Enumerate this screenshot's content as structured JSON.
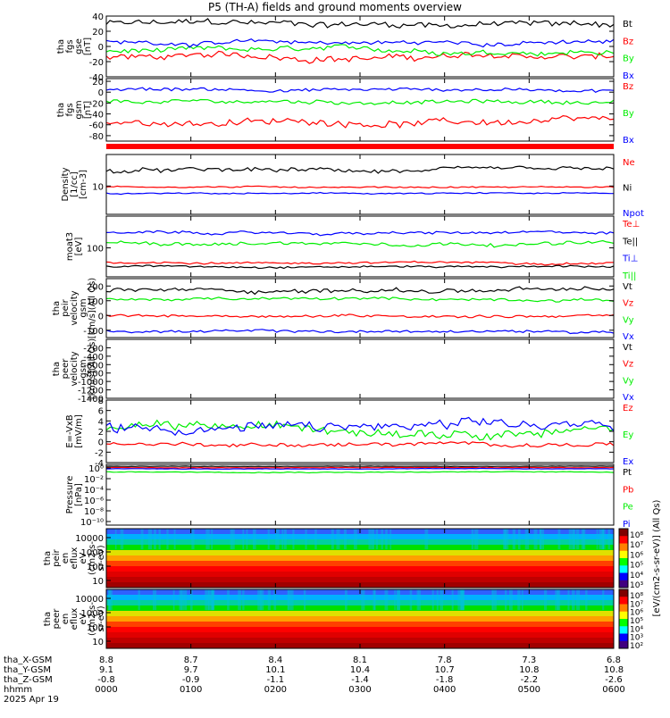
{
  "title": "P5 (TH-A) fields and ground moments overview",
  "chart_data": [
    {
      "type": "line",
      "ylabel": [
        "tha",
        "fgs",
        "gse",
        "[nT]"
      ],
      "ylim": [
        -40,
        40
      ],
      "yticks": [
        -40,
        -20,
        0,
        20,
        40
      ],
      "series": [
        {
          "name": "Bt",
          "color": "#000000",
          "base": 30,
          "amp": 7
        },
        {
          "name": "Bz",
          "color": "#ff0000",
          "base": -14,
          "amp": 7
        },
        {
          "name": "By",
          "color": "#00ee00",
          "base": -6,
          "amp": 6
        },
        {
          "name": "Bx",
          "color": "#0000ff",
          "base": 5,
          "amp": 5
        }
      ]
    },
    {
      "type": "line",
      "ylabel": [
        "tha",
        "fgs",
        "gsm",
        "[nT]"
      ],
      "ylim": [
        -90,
        25
      ],
      "yticks": [
        -80,
        -60,
        -40,
        -20,
        0,
        20
      ],
      "series": [
        {
          "name": "Bz",
          "color": "#ff0000",
          "base": -55,
          "amp": 10
        },
        {
          "name": "By",
          "color": "#00ee00",
          "base": -18,
          "amp": 6
        },
        {
          "name": "Bx",
          "color": "#0000ff",
          "base": 5,
          "amp": 5
        }
      ]
    },
    {
      "type": "line",
      "ylabel": [
        "Density",
        "[1/cc]",
        "[cm-3]"
      ],
      "ylim": [
        2,
        60
      ],
      "log": true,
      "yticks": [
        10
      ],
      "series": [
        {
          "name": "Ne",
          "color": "#ff0000",
          "base": 9.5,
          "amp": 0.6
        },
        {
          "name": "Ni",
          "color": "#000000",
          "base": 24,
          "amp": 5
        },
        {
          "name": "Npot",
          "color": "#0000ff",
          "base": 6.5,
          "amp": 0.4
        }
      ]
    },
    {
      "type": "line",
      "ylabel": [
        "moat3",
        "[eV]"
      ],
      "ylim": [
        15,
        800
      ],
      "log": true,
      "yticks": [
        100
      ],
      "series": [
        {
          "name": "Te⊥",
          "color": "#ff0000",
          "base": 38,
          "amp": 4
        },
        {
          "name": "Te||",
          "color": "#000000",
          "base": 30,
          "amp": 3
        },
        {
          "name": "Ti⊥",
          "color": "#0000ff",
          "base": 260,
          "amp": 40
        },
        {
          "name": "Ti||",
          "color": "#00ee00",
          "base": 140,
          "amp": 25
        }
      ]
    },
    {
      "type": "line",
      "ylabel": [
        "tha",
        "peir",
        "velocity",
        "gsm",
        "[km/s](All Qs)"
      ],
      "ylim": [
        -150,
        250
      ],
      "yticks": [
        -100,
        0,
        100,
        200
      ],
      "series": [
        {
          "name": "Vt",
          "color": "#000000",
          "base": 170,
          "amp": 25
        },
        {
          "name": "Vz",
          "color": "#ff0000",
          "base": 0,
          "amp": 15
        },
        {
          "name": "Vy",
          "color": "#00ee00",
          "base": 110,
          "amp": 15
        },
        {
          "name": "Vx",
          "color": "#0000ff",
          "base": -110,
          "amp": 15
        }
      ]
    },
    {
      "type": "line",
      "ylabel": [
        "tha",
        "peer",
        "velocity",
        "gsm",
        "[km/s](All Qs)"
      ],
      "ylim": [
        -1400,
        0
      ],
      "yticks": [
        -1400,
        -1200,
        -1000,
        -800,
        -600,
        -400,
        -200
      ],
      "series": [
        {
          "name": "Vt",
          "color": "#000000"
        },
        {
          "name": "Vz",
          "color": "#ff0000"
        },
        {
          "name": "Vy",
          "color": "#00ee00"
        },
        {
          "name": "Vx",
          "color": "#0000ff"
        }
      ]
    },
    {
      "type": "line",
      "ylabel": [
        "E=-VxB",
        "[mV/m]"
      ],
      "ylim": [
        -4,
        8
      ],
      "yticks": [
        -4,
        -2,
        0,
        2,
        4,
        6,
        8
      ],
      "series": [
        {
          "name": "Ez",
          "color": "#ff0000",
          "base": -0.5,
          "amp": 0.6
        },
        {
          "name": "Ey",
          "color": "#00ee00",
          "base": 2.5,
          "amp": 1.4
        },
        {
          "name": "Ex",
          "color": "#0000ff",
          "base": 2.7,
          "amp": 1.6
        }
      ]
    },
    {
      "type": "line",
      "ylabel": [
        "Pressure",
        "[nPa]"
      ],
      "ylim": [
        1e-11,
        2
      ],
      "log": true,
      "yticks": [
        "10⁰",
        "10⁻²",
        "10⁻⁴",
        "10⁻⁶",
        "10⁻⁸",
        "10⁻¹⁰"
      ],
      "series": [
        {
          "name": "Pt",
          "color": "#000000",
          "base": 0.9,
          "amp": 0.1
        },
        {
          "name": "Pb",
          "color": "#ff0000",
          "base": 0.5,
          "amp": 0.08
        },
        {
          "name": "Pe",
          "color": "#00ee00",
          "base": 0.08,
          "amp": 0.02
        },
        {
          "name": "Pi",
          "color": "#0000ff",
          "base": 0.3,
          "amp": 0.05
        }
      ]
    },
    {
      "type": "heatmap",
      "ylabel": [
        "tha",
        "peir",
        "en",
        "eflux",
        "eV",
        "(cm2-s-",
        "sr-eV)"
      ],
      "yticks": [
        10000,
        1000,
        100,
        10
      ],
      "colorbar": {
        "label": "[eV/(cm2-s-sr-eV)] (All Qs)",
        "ticks": [
          "10⁸",
          "10⁷",
          "10⁶",
          "10⁵",
          "10⁴",
          "10³"
        ]
      }
    },
    {
      "type": "heatmap",
      "ylabel": [
        "tha",
        "peer",
        "en",
        "eflux",
        "eV",
        "(cm2-s-",
        "sr-eV)"
      ],
      "yticks": [
        10000,
        1000,
        100,
        10
      ],
      "colorbar": {
        "label": "[eV/(cm2-s-sr-eV)] (All Qs)",
        "ticks": [
          "10⁸",
          "10⁷",
          "10⁶",
          "10⁵",
          "10⁴",
          "10³",
          "10²"
        ]
      }
    }
  ],
  "x_axis": {
    "rows": [
      {
        "label": "tha_X-GSM",
        "values": [
          "8.8",
          "8.7",
          "8.4",
          "8.1",
          "7.8",
          "7.3",
          "6.8"
        ]
      },
      {
        "label": "tha_Y-GSM",
        "values": [
          "9.1",
          "9.7",
          "10.1",
          "10.4",
          "10.7",
          "10.8",
          "10.8"
        ]
      },
      {
        "label": "tha_Z-GSM",
        "values": [
          "-0.8",
          "-0.9",
          "-1.1",
          "-1.4",
          "-1.8",
          "-2.2",
          "-2.6"
        ]
      },
      {
        "label": "hhmm",
        "values": [
          "0000",
          "0100",
          "0200",
          "0300",
          "0400",
          "0500",
          "0600"
        ]
      }
    ],
    "date": "2025 Apr 19"
  }
}
